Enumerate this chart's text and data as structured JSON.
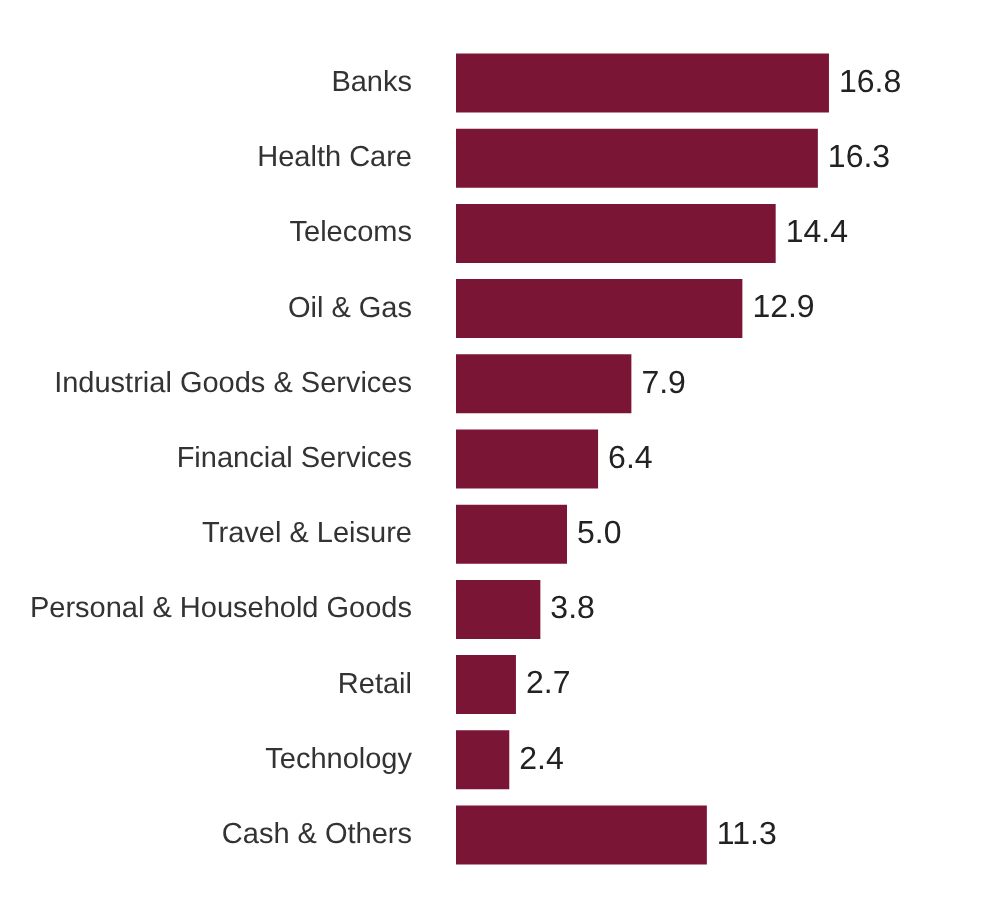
{
  "chart_data": {
    "type": "bar",
    "orientation": "horizontal",
    "categories": [
      "Banks",
      "Health Care",
      "Telecoms",
      "Oil & Gas",
      "Industrial Goods & Services",
      "Financial Services",
      "Travel & Leisure",
      "Personal & Household Goods",
      "Retail",
      "Technology",
      "Cash & Others"
    ],
    "values": [
      16.8,
      16.3,
      14.4,
      12.9,
      7.9,
      6.4,
      5.0,
      3.8,
      2.7,
      2.4,
      11.3
    ],
    "value_labels": [
      "16.8",
      "16.3",
      "14.4",
      "12.9",
      "7.9",
      "6.4",
      "5.0",
      "3.8",
      "2.7",
      "2.4",
      "11.3"
    ],
    "color": "#7b1535",
    "legend": false
  }
}
